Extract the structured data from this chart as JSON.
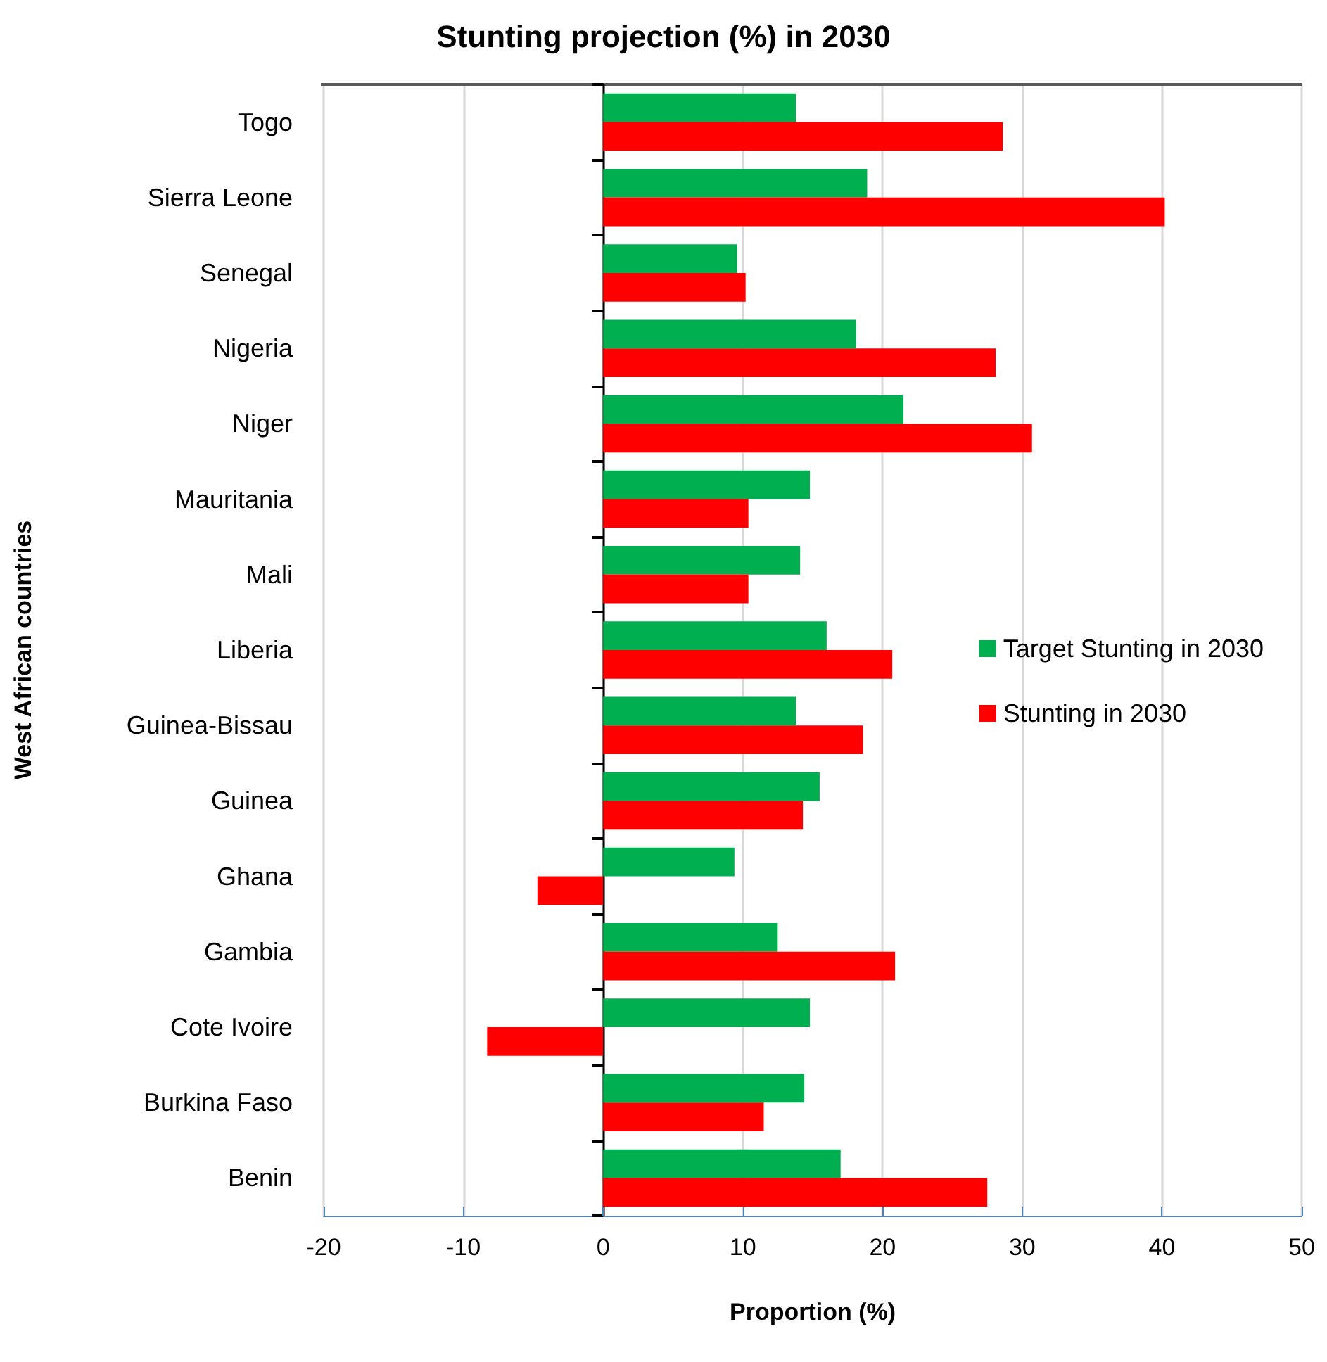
{
  "chart_data": {
    "type": "bar",
    "orientation": "horizontal",
    "title": "Stunting projection (%) in 2030",
    "xlabel": "Proportion (%)",
    "ylabel": "West African countries",
    "categories": [
      "Togo",
      "Sierra Leone",
      "Senegal",
      "Nigeria",
      "Niger",
      "Mauritania",
      "Mali",
      "Liberia",
      "Guinea-Bissau",
      "Guinea",
      "Ghana",
      "Gambia",
      "Cote Ivoire",
      "Burkina Faso",
      "Benin"
    ],
    "series": [
      {
        "name": "Target Stunting in 2030",
        "color": "#00b050",
        "values": [
          13.8,
          18.9,
          9.6,
          18.1,
          21.5,
          14.8,
          14.1,
          16.0,
          13.8,
          15.5,
          9.4,
          12.5,
          14.8,
          14.4,
          17.0
        ]
      },
      {
        "name": "Stunting in 2030",
        "color": "#ff0000",
        "values": [
          28.6,
          40.2,
          10.2,
          28.1,
          30.7,
          10.4,
          10.4,
          20.7,
          18.6,
          14.3,
          -4.7,
          20.9,
          -8.3,
          11.5,
          27.5
        ]
      }
    ],
    "xlim": [
      -20,
      50
    ],
    "xticks": [
      -20,
      -10,
      0,
      10,
      20,
      30,
      40,
      50
    ],
    "grid": "x",
    "legend": "right"
  }
}
